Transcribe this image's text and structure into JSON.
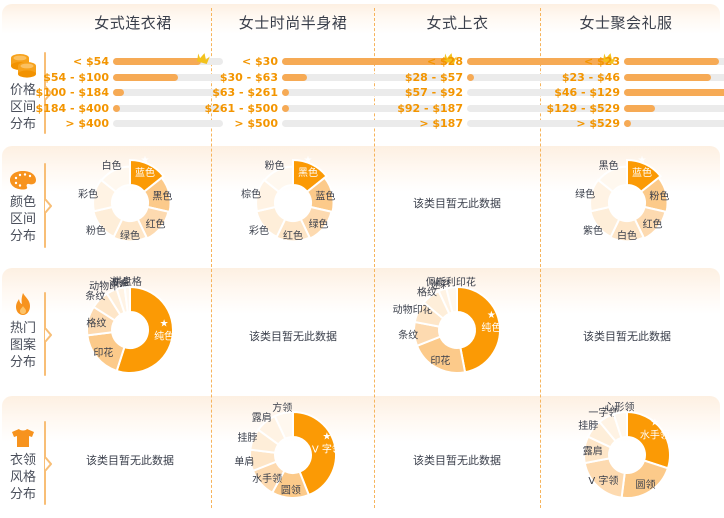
{
  "columns": [
    {
      "title": "女式连衣裙"
    },
    {
      "title": "女士时尚半身裙"
    },
    {
      "title": "女式上衣"
    },
    {
      "title": "女士聚会礼服"
    }
  ],
  "rows": [
    {
      "key": "price",
      "label_lines": [
        "价格",
        "区间",
        "分布"
      ],
      "icon": "coins-icon"
    },
    {
      "key": "color",
      "label_lines": [
        "颜色",
        "区间",
        "分布"
      ],
      "icon": "palette-icon"
    },
    {
      "key": "pattern",
      "label_lines": [
        "热门",
        "图案",
        "分布"
      ],
      "icon": "flame-icon"
    },
    {
      "key": "collar",
      "label_lines": [
        "衣领",
        "风格",
        "分布"
      ],
      "icon": "tshirt-icon"
    }
  ],
  "no_data_text": "该类目暂无此数据",
  "colors": {
    "accent": "#f39500",
    "bar_fill": "#f6aa55",
    "bar_track": "#ebebeb",
    "separator": "#f6b45c",
    "top_slice": "#fb9a05",
    "slice_2": "#fcca8a",
    "slice_3": "#fddab0",
    "slice_4": "#fee6c8",
    "slice_5": "#feeed9",
    "slice_6": "#fff3e4",
    "slice_7": "#fff8ef"
  },
  "chart_data": [
    {
      "type": "bar",
      "title": "价格区间分布 - 女式连衣裙",
      "categories": [
        "< $54",
        "$54 - $100",
        "$100 - $184",
        "$184 - $400",
        "> $400"
      ],
      "values": [
        80,
        59,
        10,
        3,
        0
      ],
      "top_marker": "< $54"
    },
    {
      "type": "bar",
      "title": "价格区间分布 - 女士时尚半身裙",
      "categories": [
        "< $30",
        "$30 - $63",
        "$63 - $261",
        "$261 - $500",
        "> $500"
      ],
      "values": [
        100,
        15,
        4,
        3,
        0
      ],
      "top_marker": "< $30"
    },
    {
      "type": "bar",
      "title": "价格区间分布 - 女式上衣",
      "categories": [
        "< $28",
        "$28 - $57",
        "$57 - $92",
        "$92 - $187",
        "> $187"
      ],
      "values": [
        100,
        4,
        0,
        0,
        0
      ],
      "top_marker": "< $28"
    },
    {
      "type": "bar",
      "title": "价格区间分布 - 女士聚会礼服",
      "categories": [
        "< $23",
        "$23 - $46",
        "$46 - $129",
        "$129 - $529",
        "> $529"
      ],
      "values": [
        68,
        62,
        90,
        22,
        4
      ],
      "top_marker": "$46 - $129"
    },
    {
      "type": "pie",
      "title": "颜色区间分布 - 女式连衣裙",
      "style": "rose",
      "categories": [
        "蓝色",
        "黑色",
        "红色",
        "绿色",
        "粉色",
        "彩色",
        "白色"
      ],
      "values": [
        100,
        82,
        74,
        66,
        60,
        56,
        52
      ],
      "top": "蓝色"
    },
    {
      "type": "pie",
      "title": "颜色区间分布 - 女士时尚半身裙",
      "style": "rose",
      "categories": [
        "黑色",
        "蓝色",
        "绿色",
        "红色",
        "彩色",
        "棕色",
        "粉色"
      ],
      "values": [
        100,
        82,
        74,
        66,
        60,
        56,
        52
      ],
      "top": "黑色"
    },
    {
      "type": "pie",
      "title": "颜色区间分布 - 女式上衣",
      "categories": [],
      "values": [],
      "empty": true
    },
    {
      "type": "pie",
      "title": "颜色区间分布 - 女士聚会礼服",
      "style": "rose",
      "categories": [
        "蓝色",
        "粉色",
        "红色",
        "白色",
        "紫色",
        "绿色",
        "黑色"
      ],
      "values": [
        100,
        82,
        74,
        66,
        60,
        56,
        52
      ],
      "top": "蓝色"
    },
    {
      "type": "pie",
      "title": "热门图案分布 - 女式连衣裙",
      "categories": [
        "纯色",
        "印花",
        "格纹",
        "条纹",
        "动物印花",
        "波点",
        "棋盘格"
      ],
      "values": [
        55,
        18,
        11,
        7,
        4,
        3,
        2
      ],
      "top": "纯色"
    },
    {
      "type": "pie",
      "title": "热门图案分布 - 女士时尚半身裙",
      "categories": [],
      "values": [],
      "empty": true
    },
    {
      "type": "pie",
      "title": "热门图案分布 - 女式上衣",
      "categories": [
        "纯色",
        "印花",
        "条纹",
        "动物印花",
        "格纹",
        "迷彩",
        "佩斯利印花"
      ],
      "values": [
        47,
        22,
        9,
        8,
        7,
        3,
        4
      ],
      "top": "纯色"
    },
    {
      "type": "pie",
      "title": "热门图案分布 - 女士聚会礼服",
      "categories": [],
      "values": [],
      "empty": true
    },
    {
      "type": "pie",
      "title": "衣领风格分布 - 女式连衣裙",
      "categories": [],
      "values": [],
      "empty": true
    },
    {
      "type": "pie",
      "title": "衣领风格分布 - 女士时尚半身裙",
      "categories": [
        "V 字领",
        "圆领",
        "水手领",
        "单肩",
        "挂脖",
        "露肩",
        "方领"
      ],
      "values": [
        44,
        14,
        11,
        8,
        8,
        8,
        7
      ],
      "top": "V 字领"
    },
    {
      "type": "pie",
      "title": "衣领风格分布 - 女式上衣",
      "categories": [],
      "values": [],
      "empty": true
    },
    {
      "type": "pie",
      "title": "衣领风格分布 - 女士聚会礼服",
      "categories": [
        "水手领",
        "圆领",
        "V 字领",
        "露肩",
        "挂脖",
        "一字领",
        "心形领"
      ],
      "values": [
        30,
        22,
        20,
        10,
        7,
        6,
        5
      ],
      "top": "水手领"
    }
  ]
}
